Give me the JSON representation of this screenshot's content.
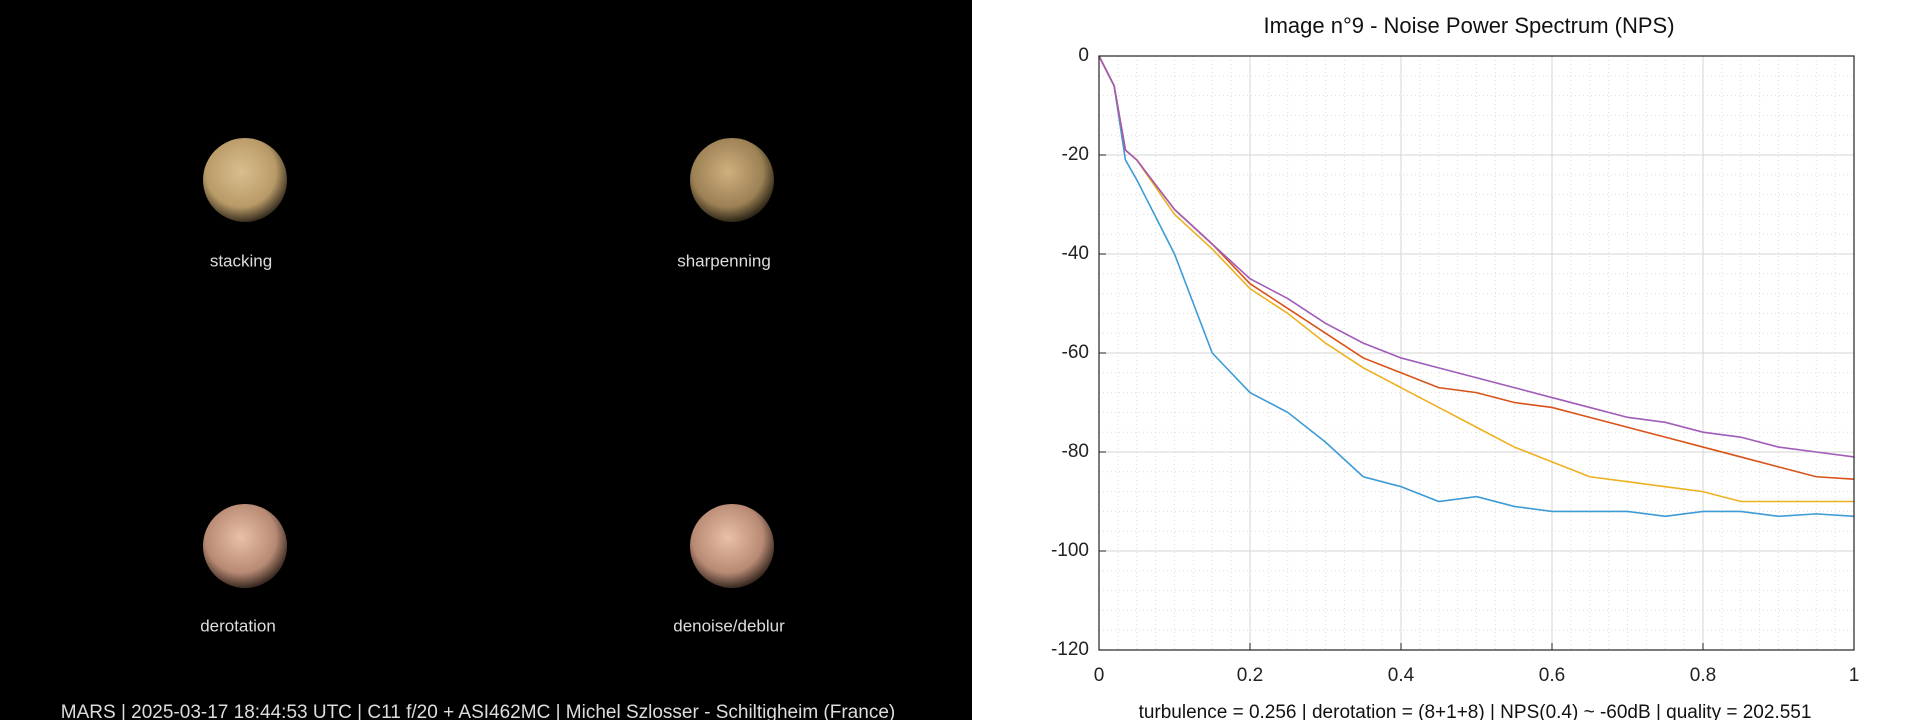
{
  "panels": [
    "stacking",
    "sharpenning",
    "derotation",
    "denoise/deblur"
  ],
  "footer": "MARS | 2025-03-17  18:44:53 UTC | C11 f/20 + ASI462MC | Michel Szlosser - Schiltigheim (France)",
  "chart_data": {
    "type": "line",
    "title": "Image n°9 - Noise Power Spectrum (NPS)",
    "caption": "turbulence = 0.256 | derotation = (8+1+8) | NPS(0.4) ~ -60dB |  quality = 202.551",
    "x": [
      0,
      0.02,
      0.035,
      0.05,
      0.1,
      0.15,
      0.2,
      0.25,
      0.3,
      0.35,
      0.4,
      0.45,
      0.5,
      0.55,
      0.6,
      0.65,
      0.7,
      0.75,
      0.8,
      0.85,
      0.9,
      0.95,
      1
    ],
    "series": [
      {
        "color": "#3d9bd6",
        "values": [
          0,
          -6,
          -21,
          -25,
          -40,
          -60,
          -68,
          -72,
          -78,
          -85,
          -87,
          -90,
          -89,
          -91,
          -92,
          -92,
          -92,
          -93,
          -92,
          -92,
          -93,
          -92.5,
          -93
        ]
      },
      {
        "color": "#edb120",
        "values": [
          0,
          -6,
          -19,
          -21,
          -32,
          -39,
          -47,
          -52,
          -58,
          -63,
          -67,
          -71,
          -75,
          -79,
          -82,
          -85,
          -86,
          -87,
          -88,
          -90,
          -90,
          -90,
          -90
        ]
      },
      {
        "color": "#d95319",
        "values": [
          0,
          -6,
          -19,
          -21,
          -31,
          -38,
          -46,
          -51,
          -56,
          -61,
          -64,
          -67,
          -68,
          -70,
          -71,
          -73,
          -75,
          -77,
          -79,
          -81,
          -83,
          -85,
          -85.5
        ]
      },
      {
        "color": "#a05cb8",
        "values": [
          0,
          -6,
          -19,
          -21,
          -31,
          -38,
          -45,
          -49,
          -54,
          -58,
          -61,
          -63,
          -65,
          -67,
          -69,
          -71,
          -73,
          -74,
          -76,
          -77,
          -79,
          -80,
          -81
        ]
      }
    ],
    "xlim": [
      0,
      1
    ],
    "xticks": [
      0,
      0.2,
      0.4,
      0.6,
      0.8,
      1
    ],
    "ylim": [
      -120,
      0
    ],
    "yticks": [
      0,
      -20,
      -40,
      -60,
      -80,
      -100,
      -120
    ],
    "grid": true,
    "minor_grid": true
  }
}
